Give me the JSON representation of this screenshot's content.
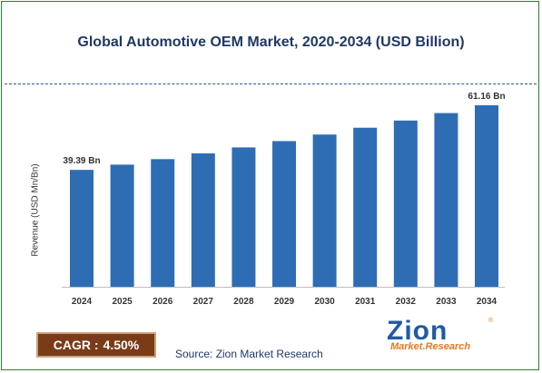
{
  "chart_data": {
    "type": "bar",
    "title": "Global Automotive OEM Market, 2020-2034 (USD Billion)",
    "ylabel": "Revenue (USD Mn/Bn)",
    "xlabel": "",
    "categories": [
      "2024",
      "2025",
      "2026",
      "2027",
      "2028",
      "2029",
      "2030",
      "2031",
      "2032",
      "2033",
      "2034"
    ],
    "values": [
      39.39,
      41.16,
      43.02,
      44.95,
      46.97,
      49.09,
      51.3,
      53.6,
      56.02,
      58.54,
      61.16
    ],
    "ylim": [
      0,
      70
    ],
    "grid": false,
    "data_labels": [
      {
        "category": "2024",
        "text": "39.39 Bn"
      },
      {
        "category": "2034",
        "text": "61.16 Bn"
      }
    ],
    "bar_color": "#2e6db4"
  },
  "cagr": {
    "label": "CAGR :",
    "value": "4.50%"
  },
  "source": "Source: Zion Market Research",
  "logo": {
    "main": "Zion",
    "sub": "Market.Research",
    "reg": "®"
  },
  "colors": {
    "title": "#1f3864",
    "border": "#2e7d32",
    "cagr_bg": "#7b3b18",
    "logo_blue": "#1e5aa8",
    "logo_orange": "#e87722"
  }
}
